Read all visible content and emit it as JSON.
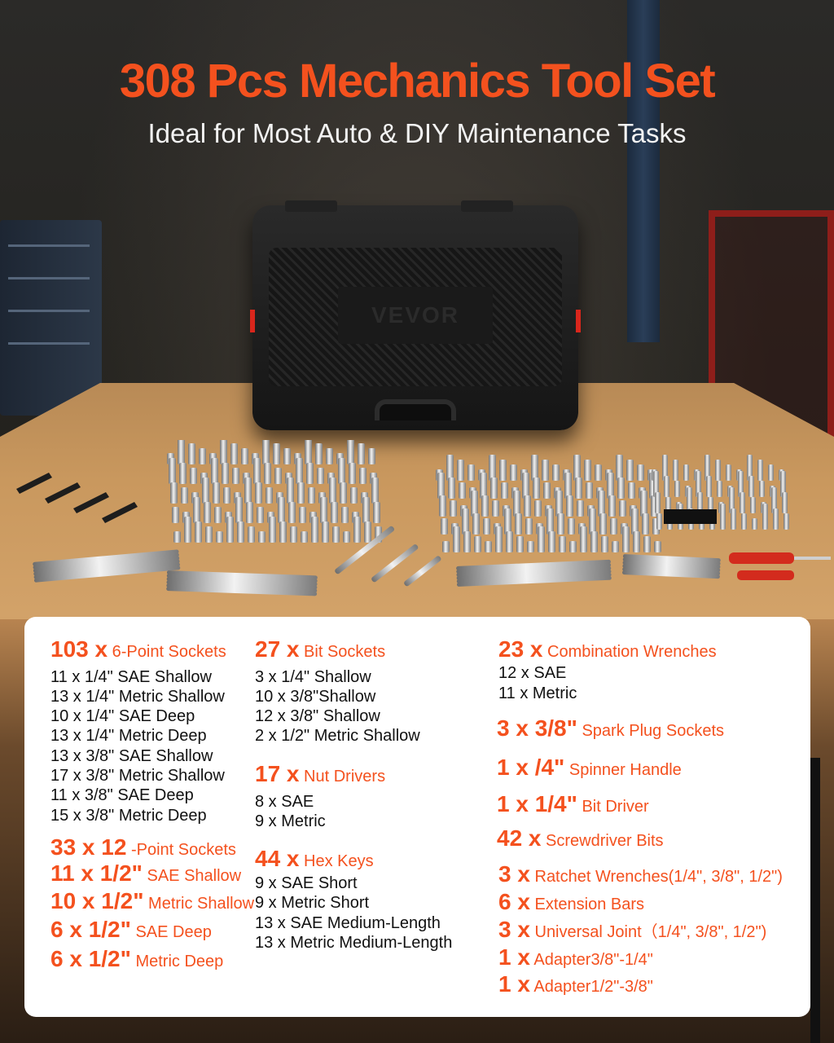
{
  "header": {
    "title": "308 Pcs Mechanics Tool Set",
    "subtitle": "Ideal for Most Auto & DIY Maintenance Tasks"
  },
  "case": {
    "logo": "VEVOR"
  },
  "colors": {
    "accent": "#f4511e",
    "text": "#111111",
    "card": "#ffffff"
  },
  "col1": {
    "h1": {
      "n": "103 x",
      "l": " 6-Point Sockets"
    },
    "items": [
      "11 x 1/4\" SAE Shallow",
      "13 x 1/4\" Metric Shallow",
      "10 x 1/4\" SAE Deep",
      "13 x 1/4\" Metric Deep",
      "13 x 3/8\" SAE Shallow",
      "17 x 3/8\" Metric Shallow",
      "11 x 3/8\" SAE Deep",
      "15 x 3/8\" Metric Deep"
    ],
    "h2": {
      "n": "33 x 12",
      "l": " -Point Sockets"
    },
    "sub": [
      {
        "n": "11 x 1/2\"",
        "l": "  SAE Shallow"
      },
      {
        "n": "10 x 1/2\"",
        "l": " Metric Shallow"
      },
      {
        "n": "6 x 1/2\"",
        "l": "  SAE Deep"
      },
      {
        "n": "6 x 1/2\"",
        "l": " Metric Deep"
      }
    ]
  },
  "col2": {
    "h1": {
      "n": "27 x",
      "l": " Bit Sockets"
    },
    "items1": [
      "3 x 1/4\" Shallow",
      "10 x 3/8\"Shallow",
      "12 x 3/8\" Shallow",
      "2 x 1/2\" Metric Shallow"
    ],
    "h2": {
      "n": "17 x",
      "l": " Nut Drivers"
    },
    "items2": [
      "8 x SAE",
      "9 x Metric"
    ],
    "h3": {
      "n": "44 x",
      "l": " Hex Keys"
    },
    "items3": [
      "9 x SAE Short",
      "9 x Metric Short",
      "13 x SAE Medium-Length",
      "13 x Metric Medium-Length"
    ]
  },
  "col3": {
    "h1": {
      "n": "23 x",
      "l": " Combination Wrenches"
    },
    "items": [
      "12 x SAE",
      "11 x Metric"
    ],
    "rows": [
      {
        "n": "3 x 3/8\"",
        "l": " Spark Plug Sockets"
      },
      {
        "n": "1 x /4\"",
        "l": " Spinner Handle"
      },
      {
        "n": "1 x 1/4\"",
        "l": " Bit Driver"
      },
      {
        "n": "42 x",
        "l": "  Screwdriver Bits"
      },
      {
        "n": "3 x",
        "l": "  Ratchet Wrenches(1/4\", 3/8\", 1/2\")"
      },
      {
        "n": "6 x",
        "l": "  Extension Bars"
      },
      {
        "n": "3 x",
        "l": "  Universal Joint（1/4\", 3/8\", 1/2\")"
      },
      {
        "n": "1 x",
        "l": "  Adapter3/8\"-1/4\""
      },
      {
        "n": "1 x",
        "l": "  Adapter1/2\"-3/8\""
      }
    ]
  }
}
